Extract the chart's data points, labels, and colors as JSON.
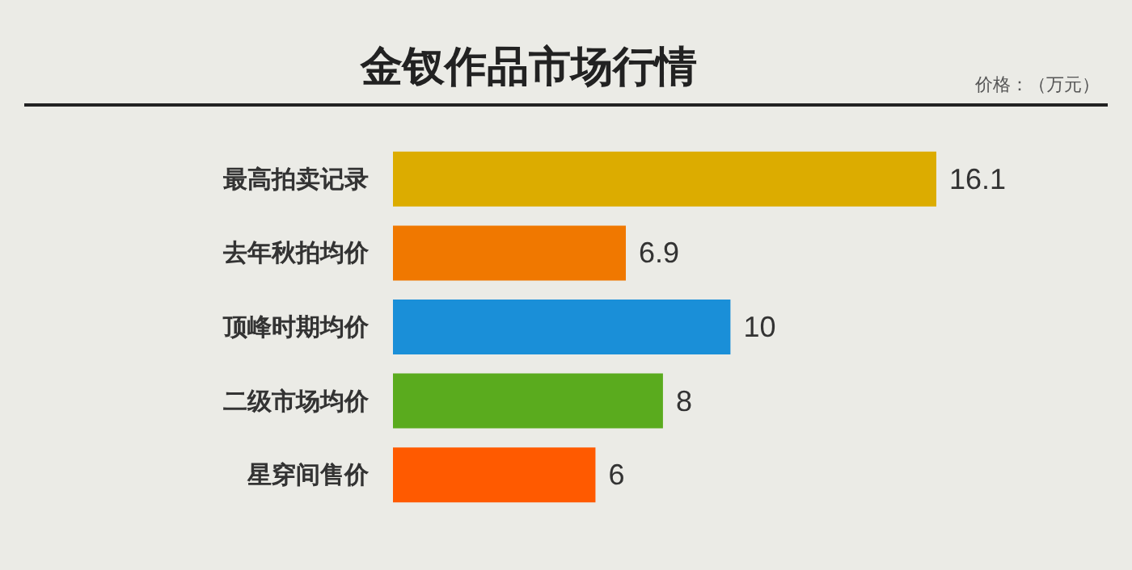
{
  "chart_data": {
    "type": "bar",
    "orientation": "horizontal",
    "title": "金钗作品市场行情",
    "subtitle": "价格：（万元）",
    "categories": [
      "最高拍卖记录",
      "去年秋拍均价",
      "顶峰时期均价",
      "二级市场均价",
      "星穿间售价"
    ],
    "values": [
      16.1,
      6.9,
      10,
      8,
      6
    ],
    "colors": [
      "#dcac00",
      "#f07800",
      "#1a8fd8",
      "#5aab1e",
      "#ff5a00"
    ],
    "data_labels": true
  }
}
